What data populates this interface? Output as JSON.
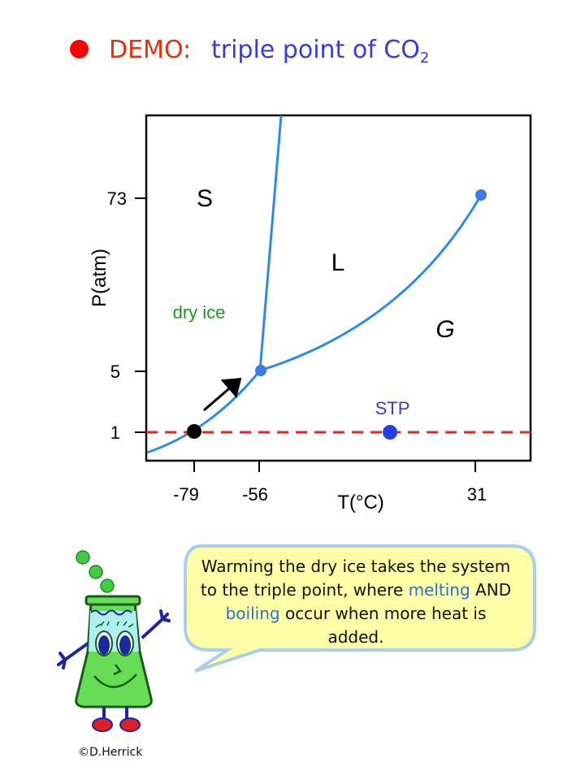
{
  "title": {
    "prefix": "DEMO:",
    "text": "triple point of CO",
    "subscript": "2"
  },
  "colors": {
    "bullet": "#ff0000",
    "prefix": "#e8300c",
    "title": "#3a3ae0",
    "curve": "#2f8de0",
    "point": "#3b7ae8",
    "stp_point": "#1f3fe8",
    "stp_label": "#3a3ac8",
    "dry_ice": "#1a9a1a",
    "dashed_line": "#ee2222",
    "bubble_fill": "#ffffa8",
    "bubble_stroke": "#a8d0ee",
    "highlight": "#2f6fd6"
  },
  "chart_data": {
    "type": "phase_diagram",
    "xlabel": "T(°C)",
    "ylabel": "P(atm)",
    "x_ticks": [
      "-79",
      "-56",
      "31"
    ],
    "y_ticks": [
      "73",
      "5",
      "1"
    ],
    "regions": [
      "S",
      "L",
      "G"
    ],
    "points": [
      {
        "name": "sublimation",
        "x": -79,
        "y": 1
      },
      {
        "name": "triple_point",
        "x": -56,
        "y": 5
      },
      {
        "name": "critical_point",
        "x": 31,
        "y": 73
      },
      {
        "name": "STP",
        "label": "STP",
        "x": 0,
        "y": 1
      }
    ],
    "annotation": "dry ice",
    "reference_line": {
      "y": 1,
      "style": "dashed",
      "color": "red"
    }
  },
  "bubble": {
    "part1": "Warming the dry ice takes the system to the triple point, where ",
    "word1": "melting",
    "part2": " AND ",
    "word2": "boiling",
    "part3": " occur when more heat is added."
  },
  "credit": "©D.Herrick"
}
